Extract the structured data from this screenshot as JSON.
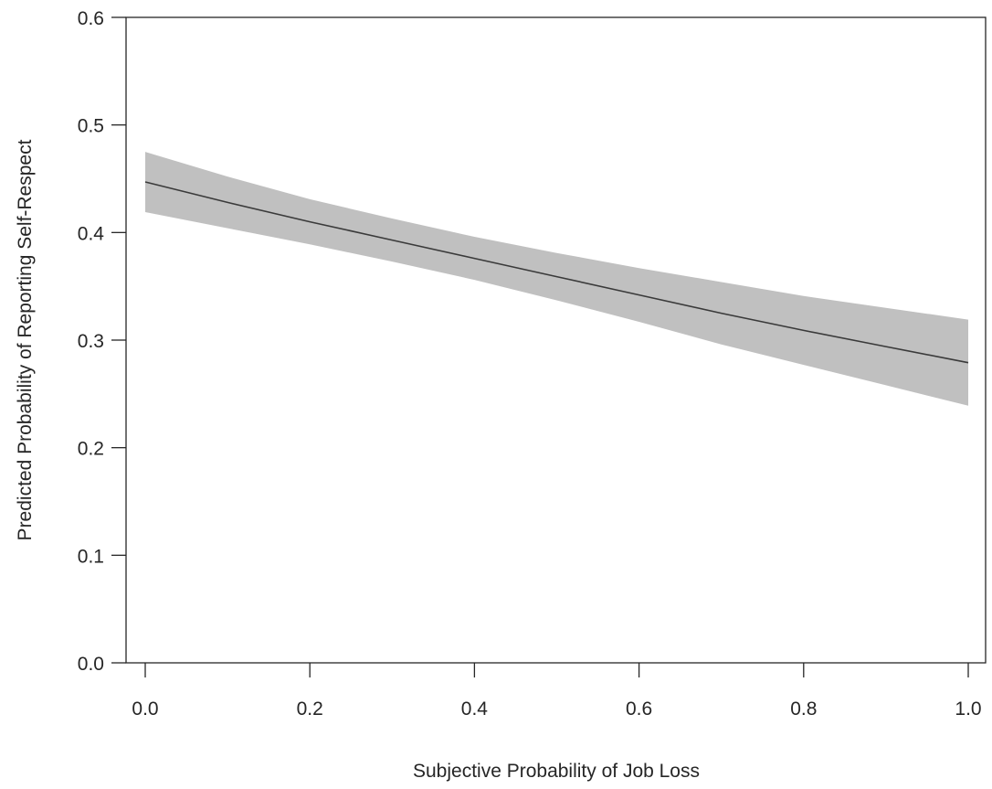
{
  "chart_data": {
    "type": "line",
    "title": "",
    "xlabel": "Subjective Probability of Job Loss",
    "ylabel": "Predicted Probability of Reporting Self-Respect",
    "xlim": [
      0.0,
      1.0
    ],
    "ylim": [
      0.0,
      0.6
    ],
    "xticks": [
      "0.0",
      "0.2",
      "0.4",
      "0.6",
      "0.8",
      "1.0"
    ],
    "yticks": [
      "0.0",
      "0.1",
      "0.2",
      "0.3",
      "0.4",
      "0.5",
      "0.6"
    ],
    "grid": false,
    "legend": "none",
    "series": [
      {
        "x": [
          0.0,
          0.1,
          0.2,
          0.3,
          0.4,
          0.5,
          0.6,
          0.7,
          0.8,
          0.9,
          1.0
        ],
        "y": [
          0.447,
          0.428,
          0.41,
          0.393,
          0.376,
          0.359,
          0.342,
          0.325,
          0.309,
          0.294,
          0.279
        ],
        "lower": [
          0.419,
          0.404,
          0.389,
          0.373,
          0.356,
          0.337,
          0.317,
          0.296,
          0.277,
          0.258,
          0.239
        ],
        "upper": [
          0.475,
          0.452,
          0.431,
          0.413,
          0.396,
          0.381,
          0.367,
          0.354,
          0.341,
          0.33,
          0.319
        ]
      }
    ],
    "colors": {
      "line": "#3a3a3a",
      "band": "#c0c0c0",
      "axis": "#262626"
    }
  }
}
